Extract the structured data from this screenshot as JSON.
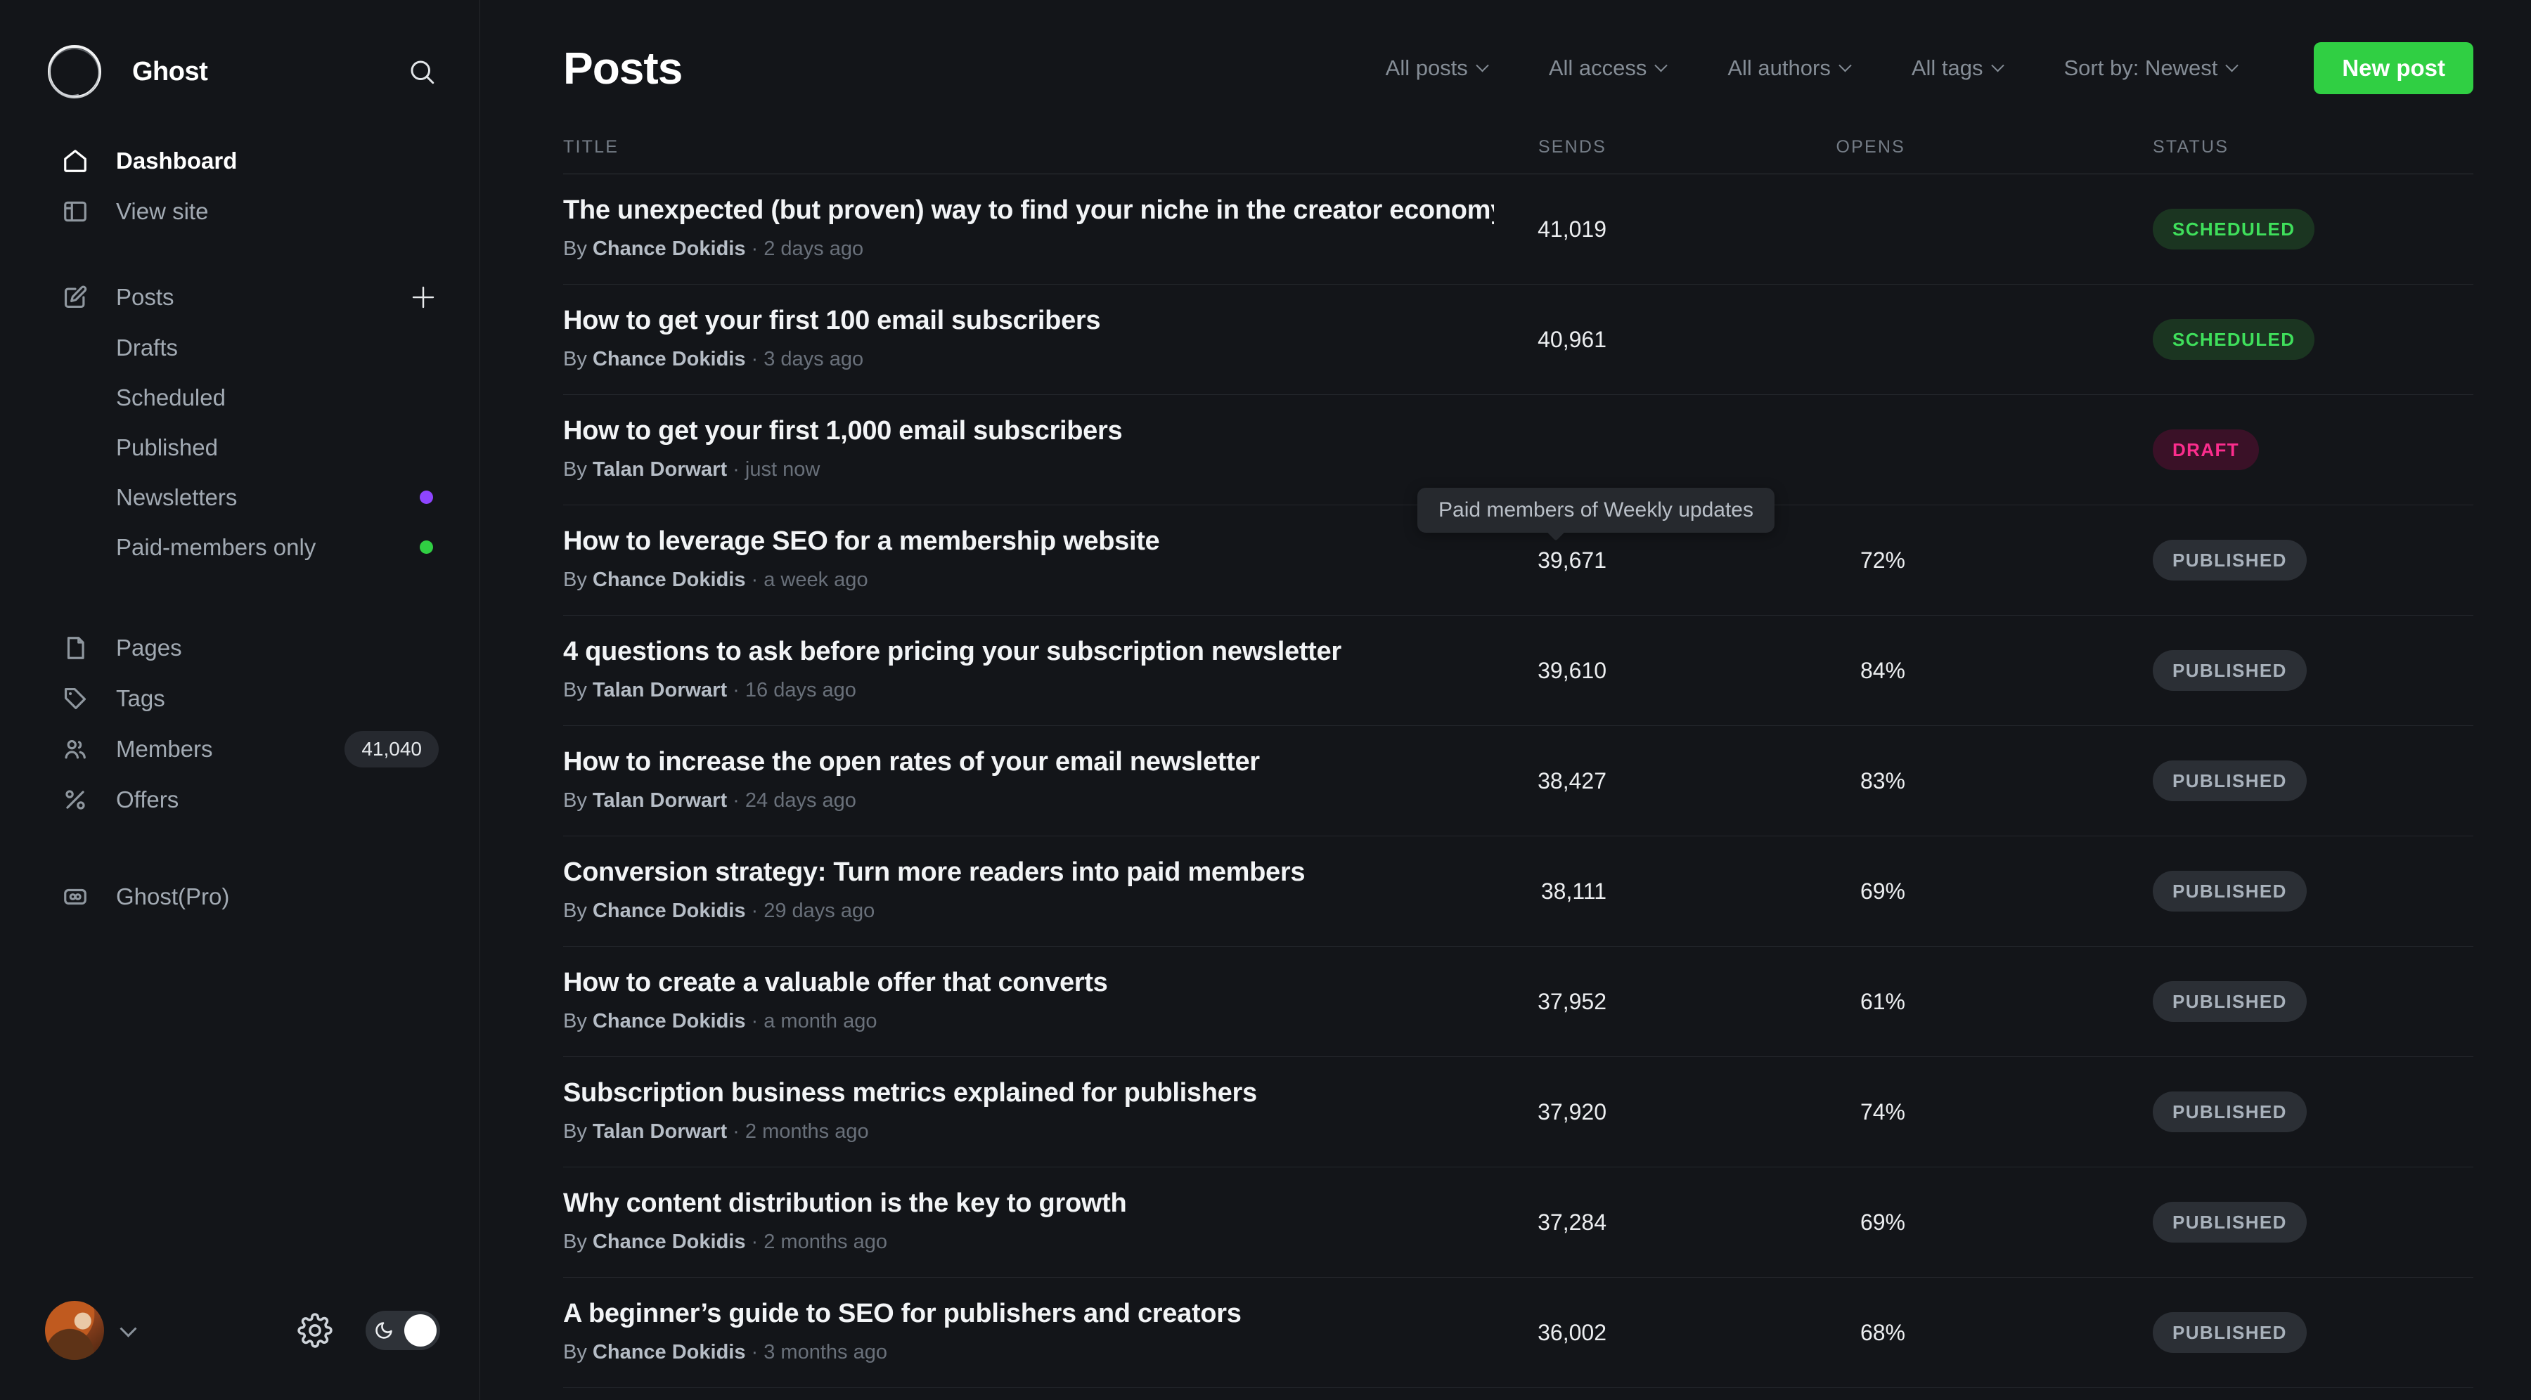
{
  "colors": {
    "accent_green": "#30cf43",
    "scheduled_text": "#3fdf5b",
    "draft_text": "#fb2d8d",
    "published_text": "#a9b2bc",
    "newsletters_dot": "#8e45ff",
    "paid_members_dot": "#30cf43"
  },
  "sidebar": {
    "brand": "Ghost",
    "dashboard": "Dashboard",
    "view_site": "View site",
    "posts": "Posts",
    "posts_sub": [
      {
        "label": "Drafts"
      },
      {
        "label": "Scheduled"
      },
      {
        "label": "Published"
      },
      {
        "label": "Newsletters",
        "dot": "#8e45ff"
      },
      {
        "label": "Paid-members only",
        "dot": "#30cf43"
      }
    ],
    "pages": "Pages",
    "tags": "Tags",
    "members": "Members",
    "members_count": "41,040",
    "offers": "Offers",
    "pro": "Ghost(Pro)"
  },
  "header": {
    "title": "Posts",
    "filters": [
      "All posts",
      "All access",
      "All authors",
      "All tags",
      "Sort by: Newest"
    ],
    "new_post": "New post"
  },
  "table": {
    "headers": [
      "TITLE",
      "SENDS",
      "OPENS",
      "STATUS"
    ],
    "by_label": "By",
    "separator": "·",
    "rows": [
      {
        "title": "The unexpected (but proven) way to find your niche in the creator economy",
        "author": "Chance Dokidis",
        "time": "2 days ago",
        "sends": "41,019",
        "opens": "",
        "status": "scheduled",
        "status_label": "SCHEDULED"
      },
      {
        "title": "How to get your first 100 email subscribers",
        "author": "Chance Dokidis",
        "time": "3 days ago",
        "sends": "40,961",
        "opens": "",
        "status": "scheduled",
        "status_label": "SCHEDULED"
      },
      {
        "title": "How to get your first 1,000 email subscribers",
        "author": "Talan Dorwart",
        "time": "just now",
        "sends": "",
        "opens": "",
        "status": "draft",
        "status_label": "DRAFT"
      },
      {
        "title": "How to leverage SEO for a membership website",
        "author": "Chance Dokidis",
        "time": "a week ago",
        "sends": "39,671",
        "opens": "72%",
        "status": "published",
        "status_label": "PUBLISHED"
      },
      {
        "title": "4 questions to ask before pricing your subscription newsletter",
        "author": "Talan Dorwart",
        "time": "16 days ago",
        "sends": "39,610",
        "opens": "84%",
        "status": "published",
        "status_label": "PUBLISHED"
      },
      {
        "title": "How to increase the open rates of your email newsletter",
        "author": "Talan Dorwart",
        "time": "24 days ago",
        "sends": "38,427",
        "opens": "83%",
        "status": "published",
        "status_label": "PUBLISHED"
      },
      {
        "title": "Conversion strategy: Turn more readers into paid members",
        "author": "Chance Dokidis",
        "time": "29 days ago",
        "sends": "38,111",
        "opens": "69%",
        "status": "published",
        "status_label": "PUBLISHED"
      },
      {
        "title": "How to create a valuable offer that converts",
        "author": "Chance Dokidis",
        "time": "a month ago",
        "sends": "37,952",
        "opens": "61%",
        "status": "published",
        "status_label": "PUBLISHED"
      },
      {
        "title": "Subscription business metrics explained for publishers",
        "author": "Talan Dorwart",
        "time": "2 months ago",
        "sends": "37,920",
        "opens": "74%",
        "status": "published",
        "status_label": "PUBLISHED"
      },
      {
        "title": "Why content distribution is the key to growth",
        "author": "Chance Dokidis",
        "time": "2 months ago",
        "sends": "37,284",
        "opens": "69%",
        "status": "published",
        "status_label": "PUBLISHED"
      },
      {
        "title": "A beginner’s guide to SEO for publishers and creators",
        "author": "Chance Dokidis",
        "time": "3 months ago",
        "sends": "36,002",
        "opens": "68%",
        "status": "published",
        "status_label": "PUBLISHED"
      }
    ]
  },
  "tooltip": {
    "text": "Paid members of Weekly updates"
  }
}
